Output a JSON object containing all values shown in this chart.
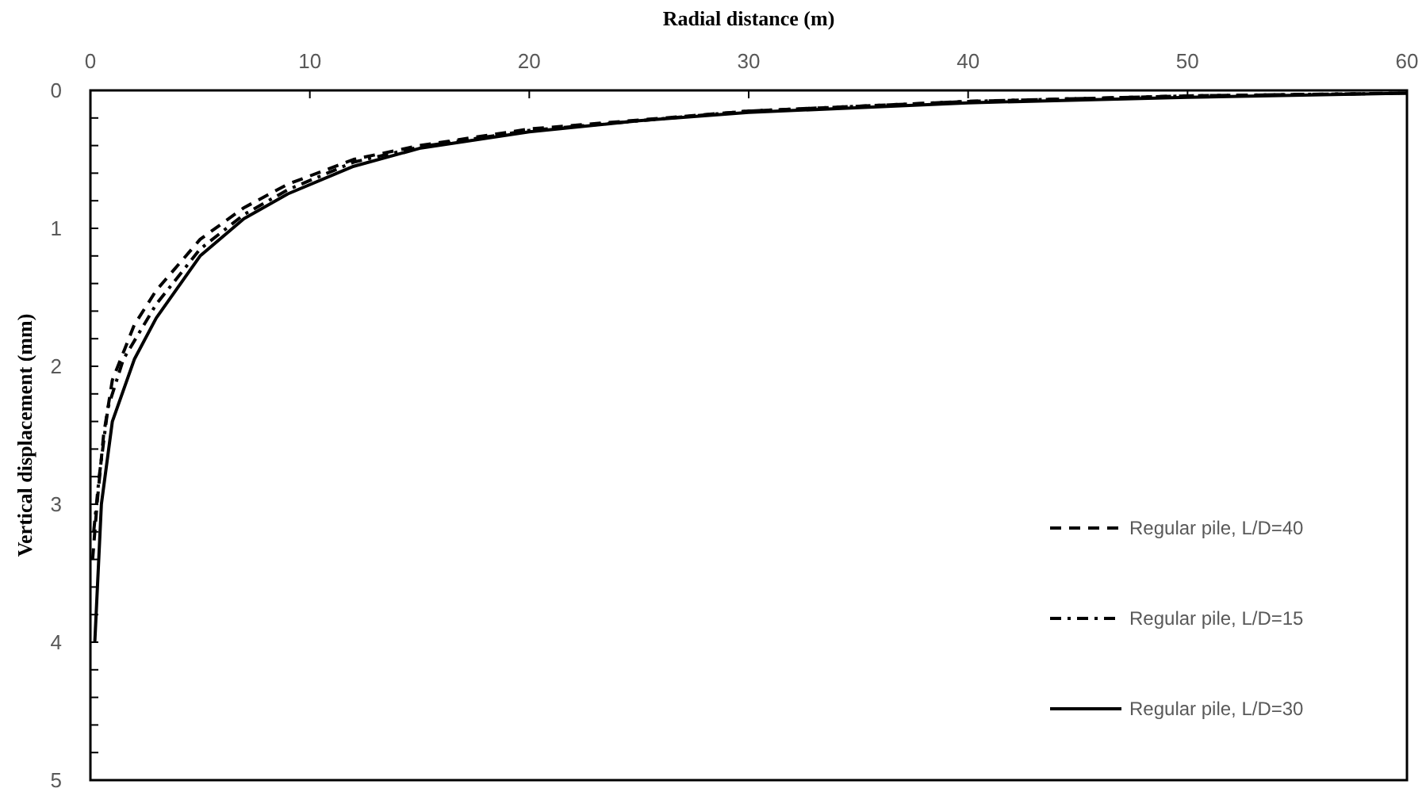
{
  "chart_data": {
    "type": "line",
    "xlabel": "Radial distance (m)",
    "ylabel": "Vertical displacement (mm)",
    "xlim": [
      0,
      60
    ],
    "xticks": [
      0,
      10,
      20,
      30,
      40,
      50,
      60
    ],
    "ylim": [
      5,
      0
    ],
    "yticks": [
      0,
      {
        "value": 0.2,
        "label": null
      },
      {
        "value": 0.4,
        "label": null
      },
      {
        "value": 0.6,
        "label": null
      },
      {
        "value": 0.8,
        "label": null
      },
      1,
      {
        "value": 1.2,
        "label": null
      },
      {
        "value": 1.4,
        "label": null
      },
      {
        "value": 1.6,
        "label": null
      },
      {
        "value": 1.8,
        "label": null
      },
      2,
      {
        "value": 2.2,
        "label": null
      },
      {
        "value": 2.4,
        "label": null
      },
      {
        "value": 2.6,
        "label": null
      },
      {
        "value": 2.8,
        "label": null
      },
      3,
      {
        "value": 3.2,
        "label": null
      },
      {
        "value": 3.4,
        "label": null
      },
      {
        "value": 3.6,
        "label": null
      },
      {
        "value": 3.8,
        "label": null
      },
      4,
      {
        "value": 4.2,
        "label": null
      },
      {
        "value": 4.4,
        "label": null
      },
      {
        "value": 4.6,
        "label": null
      },
      {
        "value": 4.8,
        "label": null
      },
      5
    ],
    "grid": false,
    "legend": "right",
    "series": [
      {
        "name": "Regular pile, L/D=40",
        "color": "#000000",
        "line_style": "dashed",
        "x": [
          0.1,
          0.3,
          0.6,
          1,
          2,
          3,
          5,
          7,
          9,
          12,
          15,
          20,
          30,
          40,
          50,
          60
        ],
        "values": [
          3.4,
          3.0,
          2.5,
          2.1,
          1.7,
          1.45,
          1.08,
          0.85,
          0.68,
          0.5,
          0.4,
          0.28,
          0.15,
          0.08,
          0.04,
          0.02
        ]
      },
      {
        "name": "Regular pile, L/D=15",
        "color": "#000000",
        "line_style": "dashdot",
        "x": [
          0.15,
          0.4,
          0.8,
          1.5,
          3,
          5,
          7,
          9,
          12,
          15,
          20,
          30,
          40,
          50,
          60
        ],
        "values": [
          3.2,
          2.8,
          2.3,
          1.95,
          1.55,
          1.15,
          0.9,
          0.72,
          0.52,
          0.41,
          0.29,
          0.15,
          0.08,
          0.04,
          0.02
        ]
      },
      {
        "name": "Regular pile, L/D=30",
        "color": "#000000",
        "line_style": "solid",
        "x": [
          0.2,
          0.5,
          1,
          2,
          3,
          5,
          7,
          9,
          12,
          15,
          20,
          25,
          30,
          40,
          50,
          60
        ],
        "values": [
          4.0,
          3.0,
          2.4,
          1.95,
          1.65,
          1.2,
          0.93,
          0.75,
          0.55,
          0.42,
          0.3,
          0.22,
          0.16,
          0.09,
          0.05,
          0.02
        ]
      }
    ]
  }
}
